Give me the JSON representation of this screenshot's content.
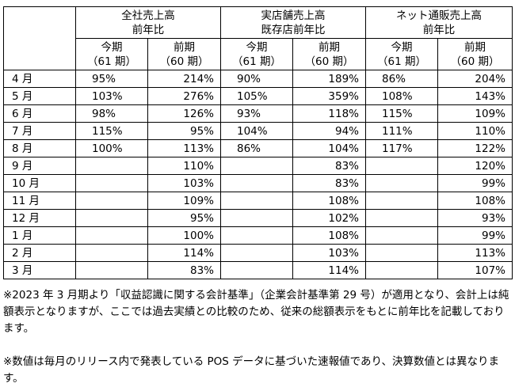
{
  "groups": [
    {
      "line1": "全社売上高",
      "line2": "前年比"
    },
    {
      "line1": "実店舗売上高",
      "line2": "既存店前年比"
    },
    {
      "line1": "ネット通販売上高",
      "line2": "前年比"
    }
  ],
  "subheaders": [
    {
      "line1": "今期",
      "line2": "（61 期）"
    },
    {
      "line1": "前期",
      "line2": "（60 期）"
    },
    {
      "line1": "今期",
      "line2": "（61 期）"
    },
    {
      "line1": "前期",
      "line2": "（60 期）"
    },
    {
      "line1": "今期",
      "line2": "（61 期）"
    },
    {
      "line1": "前期",
      "line2": "（60 期）"
    }
  ],
  "rows": [
    {
      "month": "4 月",
      "values": [
        "95%",
        "214%",
        "90%",
        "189%",
        "86%",
        "204%"
      ]
    },
    {
      "month": "5 月",
      "values": [
        "103%",
        "276%",
        "105%",
        "359%",
        "108%",
        "143%"
      ]
    },
    {
      "month": "6 月",
      "values": [
        "98%",
        "126%",
        "93%",
        "118%",
        "115%",
        "109%"
      ]
    },
    {
      "month": "7 月",
      "values": [
        "115%",
        "95%",
        "104%",
        "94%",
        "111%",
        "110%"
      ]
    },
    {
      "month": "8 月",
      "values": [
        "100%",
        "113%",
        "86%",
        "104%",
        "117%",
        "122%"
      ]
    },
    {
      "month": "9 月",
      "values": [
        "",
        "110%",
        "",
        "83%",
        "",
        "120%"
      ]
    },
    {
      "month": "10 月",
      "values": [
        "",
        "103%",
        "",
        "83%",
        "",
        "99%"
      ]
    },
    {
      "month": "11 月",
      "values": [
        "",
        "109%",
        "",
        "108%",
        "",
        "108%"
      ]
    },
    {
      "month": "12 月",
      "values": [
        "",
        "95%",
        "",
        "102%",
        "",
        "93%"
      ]
    },
    {
      "month": "1 月",
      "values": [
        "",
        "100%",
        "",
        "108%",
        "",
        "99%"
      ]
    },
    {
      "month": "2 月",
      "values": [
        "",
        "114%",
        "",
        "103%",
        "",
        "113%"
      ]
    },
    {
      "month": "3 月",
      "values": [
        "",
        "83%",
        "",
        "114%",
        "",
        "107%"
      ]
    }
  ],
  "notes": [
    "※2023 年 3 月期より「収益認識に関する会計基準」（企業会計基準第 29 号）が適用となり、会計上は純額表示となりますが、ここでは過去実績との比較のため、従来の総額表示をもとに前年比を記載しております。",
    "※数値は毎月のリリース内で発表している POS データに基づいた速報値であり、決算数値とは異なります。"
  ]
}
